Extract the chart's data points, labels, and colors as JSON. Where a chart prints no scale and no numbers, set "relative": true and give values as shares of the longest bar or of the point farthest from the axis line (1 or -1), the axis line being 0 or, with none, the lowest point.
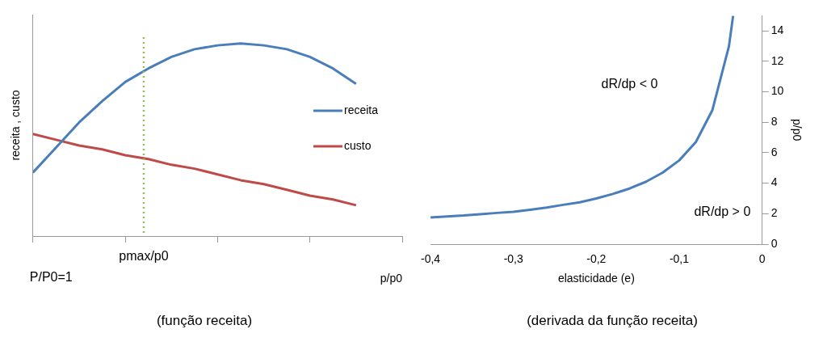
{
  "chart_data": [
    {
      "type": "line",
      "title": "(função receita)",
      "xlabel": "p/p0",
      "ylabel": "receita , custo",
      "relative": true,
      "categories": [
        null,
        null,
        null,
        null,
        null,
        null,
        null,
        null,
        null,
        null,
        null,
        null,
        null,
        null,
        null,
        null,
        null
      ],
      "annotations": [
        "P/P0=1",
        "pmax/p0"
      ],
      "series": [
        {
          "name": "receita",
          "color": "#4a7ebb",
          "values": [
            0.33,
            0.46,
            0.59,
            0.7,
            0.8,
            0.87,
            0.93,
            0.97,
            0.99,
            1,
            0.99,
            0.97,
            0.93,
            0.87,
            0.79,
            null,
            null
          ]
        },
        {
          "name": "custo",
          "color": "#be4b48",
          "values": [
            0.53,
            0.5,
            0.47,
            0.45,
            0.42,
            0.4,
            0.37,
            0.35,
            0.32,
            0.29,
            0.27,
            0.24,
            0.21,
            0.19,
            0.16,
            null,
            null
          ]
        }
      ],
      "legend": "right",
      "grid": false,
      "marker": "none",
      "line_style": "solid"
    },
    {
      "type": "line",
      "title": "(derivada da função receita)",
      "xlabel": "elasticidade (e)",
      "ylabel": "p/p0",
      "x": [
        -0.4,
        -0.38,
        -0.36,
        -0.34,
        -0.32,
        -0.3,
        -0.28,
        -0.26,
        -0.24,
        -0.22,
        -0.2,
        -0.18,
        -0.16,
        -0.14,
        -0.12,
        -0.1,
        -0.08,
        -0.06,
        -0.04,
        -0.035
      ],
      "xlim": [
        -0.4,
        0
      ],
      "xticks": [
        {
          "value": -0.4,
          "label": "-0,4"
        },
        {
          "value": -0.3,
          "label": "-0,3"
        },
        {
          "value": -0.2,
          "label": "-0,2"
        },
        {
          "value": -0.1,
          "label": "-0,1"
        },
        0
      ],
      "ylim": [
        0,
        15
      ],
      "yticks": [
        0,
        2,
        4,
        6,
        8,
        10,
        12,
        14
      ],
      "series": [
        {
          "color": "#4a7ebb",
          "values": [
            1.75,
            1.82,
            1.88,
            1.97,
            2.05,
            2.12,
            2.25,
            2.4,
            2.58,
            2.75,
            3.0,
            3.3,
            3.65,
            4.1,
            4.7,
            5.5,
            6.7,
            8.8,
            13,
            15
          ]
        }
      ],
      "annotations": [
        "dR/dp < 0",
        "dR/dp > 0"
      ],
      "legend": false,
      "grid": false,
      "marker": "none",
      "line_style": "solid"
    }
  ]
}
